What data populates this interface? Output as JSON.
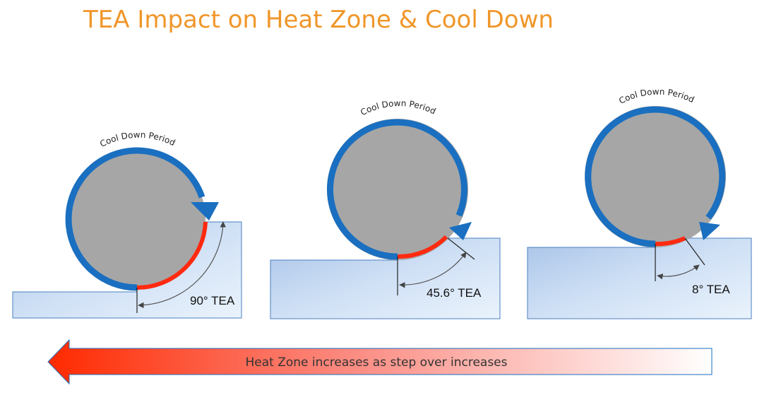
{
  "title": "TEA Impact on Heat Zone & Cool Down",
  "panels": [
    {
      "id": "p1",
      "cool_down_label": "Cool Down Period",
      "tea_label": "90° TEA"
    },
    {
      "id": "p2",
      "cool_down_label": "Cool Down Period",
      "tea_label": "45.6° TEA"
    },
    {
      "id": "p3",
      "cool_down_label": "Cool Down Period",
      "tea_label": "8° TEA"
    }
  ],
  "arrow": {
    "label": "Heat Zone increases as step over increases"
  },
  "colors": {
    "title": "#f0962a",
    "cutter": "#a6a6a6",
    "cool_down_arc": "#1a6fc0",
    "heat_zone_arc": "#ff2a10",
    "workpiece_light": "#e4effb",
    "workpiece_dark": "#b8d0ee"
  }
}
